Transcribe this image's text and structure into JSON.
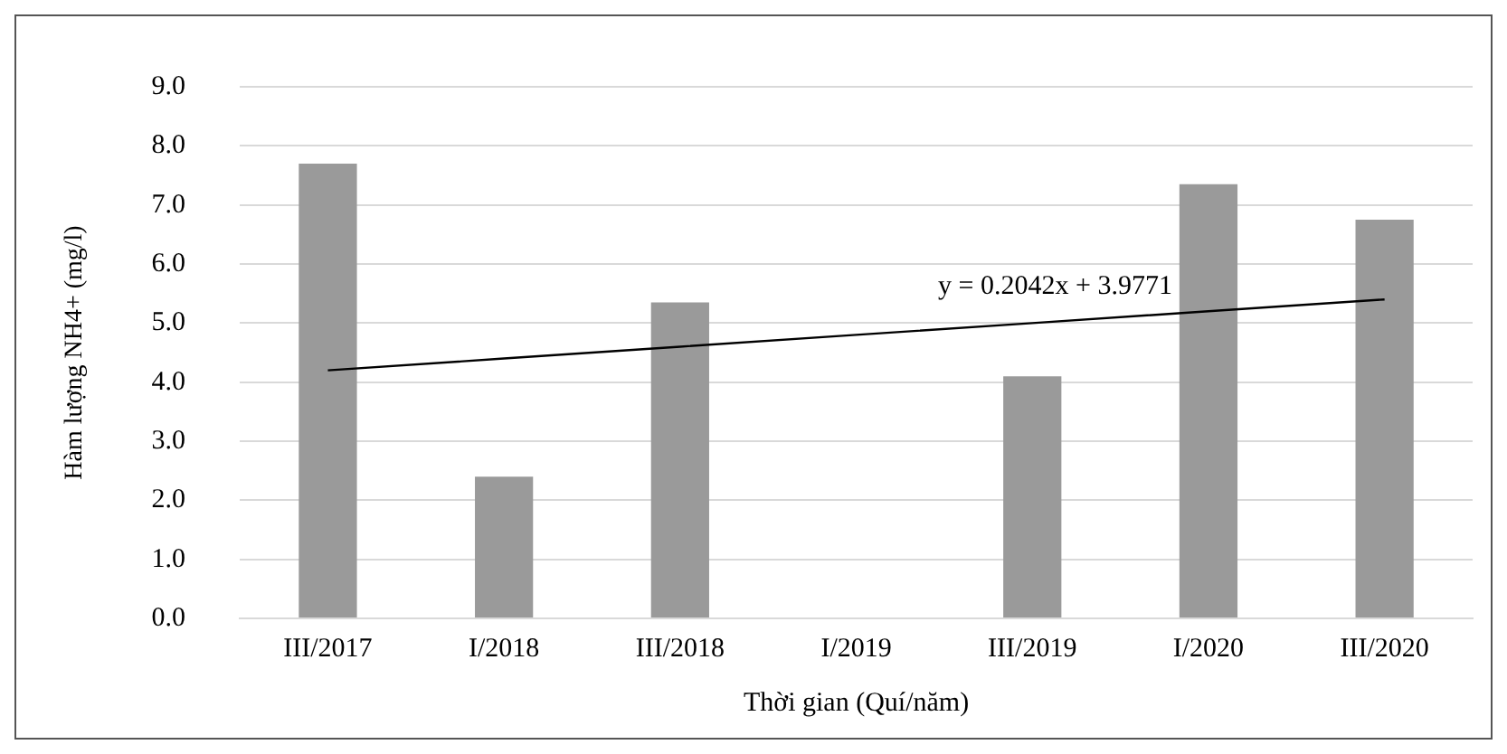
{
  "chart_data": {
    "type": "bar",
    "xlabel": "Thời gian (Quí/năm)",
    "ylabel": "Hàm lượng NH4+ (mg/l)",
    "categories": [
      "III/2017",
      "I/2018",
      "III/2018",
      "I/2019",
      "III/2019",
      "I/2020",
      "III/2020"
    ],
    "series": [
      {
        "color": "#9a9a9a",
        "values": [
          7.7,
          2.4,
          5.35,
          null,
          4.1,
          7.35,
          6.75
        ]
      },
      {
        "type": "line",
        "color": "#000000",
        "values": [
          4.2,
          4.4,
          4.6,
          4.8,
          5.0,
          5.2,
          5.4
        ]
      }
    ],
    "ylim": [
      0,
      9
    ],
    "yticks": [
      {
        "value": 0,
        "label": "0.0"
      },
      {
        "value": 1,
        "label": "1.0"
      },
      {
        "value": 2,
        "label": "2.0"
      },
      {
        "value": 3,
        "label": "3.0"
      },
      {
        "value": 4,
        "label": "4.0"
      },
      {
        "value": 5,
        "label": "5.0"
      },
      {
        "value": 6,
        "label": "6.0"
      },
      {
        "value": 7,
        "label": "7.0"
      },
      {
        "value": 8,
        "label": "8.0"
      },
      {
        "value": 9,
        "label": "9.0"
      }
    ],
    "grid": "y",
    "legend": false,
    "marker": "none",
    "annotations": [
      {
        "text": "y = 0.2042x + 3.9771",
        "x": "I/2020",
        "y": 5.2
      }
    ]
  }
}
